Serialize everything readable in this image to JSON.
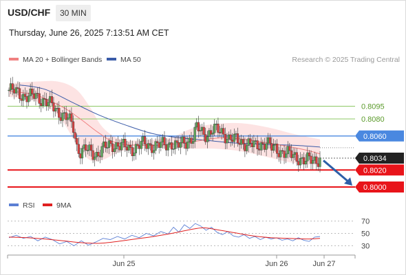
{
  "header": {
    "symbol": "USD/CHF",
    "timeframe": "30 MIN",
    "datetime": "Thursday, June 26, 2025 7:13:51 AM CET"
  },
  "colors": {
    "ma20": "#f08080",
    "ma50": "#3a5ba8",
    "bollinger_fill": "#fde0e0",
    "resistance": "#8cc863",
    "pivot": "#4a88e0",
    "support": "#e8141a",
    "candle_up": "#5aa55a",
    "candle_down": "#d94040",
    "price_label": "#222222",
    "arrow": "#2d5fa8",
    "rsi": "#5b7fd4",
    "rsi_ma": "#e02020"
  },
  "chart_data": [
    {
      "type": "candlestick",
      "title": "USD/CHF",
      "legend": [
        {
          "name": "MA 20 + Bollinger Bands",
          "color": "#f08080"
        },
        {
          "name": "MA 50",
          "color": "#3a5ba8"
        }
      ],
      "legend_position": "top-left",
      "credit": "Research © 2025 Trading Central",
      "x_ticks": [
        "Jun 25",
        "Jun 26",
        "Jun 27"
      ],
      "levels": [
        {
          "value": 0.8095,
          "label": "0.8095",
          "kind": "resistance"
        },
        {
          "value": 0.808,
          "label": "0.8080",
          "kind": "resistance"
        },
        {
          "value": 0.806,
          "label": "0.8060",
          "kind": "pivot"
        },
        {
          "value": 0.802,
          "label": "0.8020",
          "kind": "support"
        },
        {
          "value": 0.8,
          "label": "0.8000",
          "kind": "support"
        }
      ],
      "last_price": 0.8034,
      "last_price_label": "0.8034",
      "projection": {
        "from": 0.8032,
        "to": 0.8,
        "direction": "down"
      },
      "close_path": [
        [
          0,
          0.8114
        ],
        [
          6,
          0.8112
        ],
        [
          12,
          0.811
        ],
        [
          18,
          0.8107
        ],
        [
          24,
          0.8106
        ],
        [
          30,
          0.8107
        ],
        [
          36,
          0.8104
        ],
        [
          42,
          0.81
        ],
        [
          48,
          0.8095
        ],
        [
          54,
          0.809
        ],
        [
          60,
          0.8085
        ],
        [
          66,
          0.808
        ],
        [
          72,
          0.807
        ],
        [
          76,
          0.8048
        ],
        [
          80,
          0.8042
        ],
        [
          86,
          0.8044
        ],
        [
          92,
          0.804
        ],
        [
          98,
          0.8039
        ],
        [
          104,
          0.8044
        ],
        [
          110,
          0.8047
        ],
        [
          116,
          0.805
        ],
        [
          122,
          0.805
        ],
        [
          128,
          0.8047
        ],
        [
          134,
          0.8045
        ],
        [
          140,
          0.8046
        ],
        [
          146,
          0.8049
        ],
        [
          152,
          0.805
        ],
        [
          158,
          0.8049
        ],
        [
          164,
          0.8049
        ],
        [
          170,
          0.8049
        ],
        [
          176,
          0.805
        ],
        [
          182,
          0.8052
        ],
        [
          188,
          0.8047
        ],
        [
          194,
          0.8051
        ],
        [
          200,
          0.8055
        ],
        [
          206,
          0.8058
        ],
        [
          210,
          0.8069
        ],
        [
          216,
          0.8064
        ],
        [
          222,
          0.8062
        ],
        [
          228,
          0.8067
        ],
        [
          234,
          0.8066
        ],
        [
          240,
          0.8064
        ],
        [
          246,
          0.8057
        ],
        [
          252,
          0.8055
        ],
        [
          258,
          0.8054
        ],
        [
          264,
          0.8052
        ],
        [
          270,
          0.805
        ],
        [
          276,
          0.8047
        ],
        [
          282,
          0.8051
        ],
        [
          288,
          0.8053
        ],
        [
          294,
          0.8045
        ],
        [
          300,
          0.8044
        ],
        [
          306,
          0.8042
        ],
        [
          312,
          0.8039
        ],
        [
          318,
          0.8036
        ],
        [
          324,
          0.8035
        ],
        [
          330,
          0.8031
        ],
        [
          336,
          0.8031
        ],
        [
          342,
          0.8032
        ],
        [
          348,
          0.8034
        ]
      ],
      "ma20_path": [
        [
          0,
          0.8113
        ],
        [
          30,
          0.8108
        ],
        [
          60,
          0.8094
        ],
        [
          80,
          0.808
        ],
        [
          100,
          0.8064
        ],
        [
          120,
          0.8052
        ],
        [
          150,
          0.8049
        ],
        [
          180,
          0.805
        ],
        [
          210,
          0.8054
        ],
        [
          240,
          0.8058
        ],
        [
          270,
          0.8055
        ],
        [
          300,
          0.805
        ],
        [
          330,
          0.8044
        ],
        [
          348,
          0.8039
        ]
      ],
      "ma50_path": [
        [
          12,
          0.812
        ],
        [
          40,
          0.8115
        ],
        [
          70,
          0.81
        ],
        [
          100,
          0.8085
        ],
        [
          130,
          0.8073
        ],
        [
          160,
          0.8063
        ],
        [
          190,
          0.8058
        ],
        [
          220,
          0.8055
        ],
        [
          250,
          0.8052
        ],
        [
          290,
          0.805
        ],
        [
          320,
          0.8049
        ],
        [
          348,
          0.8047
        ]
      ],
      "bb_upper": [
        [
          0,
          0.8122
        ],
        [
          30,
          0.8124
        ],
        [
          55,
          0.8124
        ],
        [
          75,
          0.8115
        ],
        [
          90,
          0.8095
        ],
        [
          105,
          0.807
        ],
        [
          125,
          0.8056
        ],
        [
          150,
          0.8055
        ],
        [
          180,
          0.8058
        ],
        [
          205,
          0.8069
        ],
        [
          230,
          0.8074
        ],
        [
          260,
          0.8075
        ],
        [
          290,
          0.807
        ],
        [
          320,
          0.8062
        ],
        [
          348,
          0.8056
        ]
      ],
      "bb_lower": [
        [
          0,
          0.8106
        ],
        [
          30,
          0.8101
        ],
        [
          55,
          0.8084
        ],
        [
          75,
          0.8052
        ],
        [
          90,
          0.8032
        ],
        [
          105,
          0.8032
        ],
        [
          125,
          0.8042
        ],
        [
          150,
          0.8045
        ],
        [
          180,
          0.8046
        ],
        [
          205,
          0.8045
        ],
        [
          230,
          0.8045
        ],
        [
          260,
          0.8042
        ],
        [
          290,
          0.8035
        ],
        [
          320,
          0.8028
        ],
        [
          348,
          0.8026
        ]
      ]
    },
    {
      "type": "line",
      "legend": [
        {
          "name": "RSI",
          "color": "#5b7fd4"
        },
        {
          "name": "9MA",
          "color": "#e02020"
        }
      ],
      "y_ticks": [
        70,
        50,
        30
      ],
      "levels": [
        70,
        50,
        30
      ],
      "ylim": [
        20,
        80
      ],
      "series": [
        {
          "name": "RSI",
          "values": [
            [
              0,
              43
            ],
            [
              8,
              47
            ],
            [
              16,
              42
            ],
            [
              24,
              45
            ],
            [
              32,
              38
            ],
            [
              40,
              44
            ],
            [
              48,
              40
            ],
            [
              56,
              33
            ],
            [
              64,
              37
            ],
            [
              72,
              30
            ],
            [
              80,
              38
            ],
            [
              88,
              31
            ],
            [
              96,
              36
            ],
            [
              104,
              42
            ],
            [
              112,
              40
            ],
            [
              120,
              45
            ],
            [
              128,
              41
            ],
            [
              136,
              47
            ],
            [
              144,
              43
            ],
            [
              152,
              50
            ],
            [
              160,
              46
            ],
            [
              168,
              53
            ],
            [
              176,
              49
            ],
            [
              182,
              60
            ],
            [
              188,
              52
            ],
            [
              194,
              64
            ],
            [
              200,
              58
            ],
            [
              206,
              66
            ],
            [
              212,
              62
            ],
            [
              218,
              55
            ],
            [
              224,
              60
            ],
            [
              230,
              52
            ],
            [
              236,
              48
            ],
            [
              242,
              53
            ],
            [
              248,
              46
            ],
            [
              254,
              44
            ],
            [
              260,
              48
            ],
            [
              266,
              42
            ],
            [
              272,
              45
            ],
            [
              278,
              40
            ],
            [
              284,
              44
            ],
            [
              290,
              41
            ],
            [
              296,
              43
            ],
            [
              302,
              39
            ],
            [
              308,
              41
            ],
            [
              314,
              38
            ],
            [
              320,
              43
            ],
            [
              326,
              39
            ],
            [
              332,
              37
            ],
            [
              338,
              44
            ],
            [
              344,
              45
            ]
          ]
        },
        {
          "name": "9MA",
          "values": [
            [
              0,
              44
            ],
            [
              20,
              43
            ],
            [
              40,
              41
            ],
            [
              60,
              38
            ],
            [
              80,
              35
            ],
            [
              100,
              34
            ],
            [
              120,
              37
            ],
            [
              140,
              41
            ],
            [
              160,
              45
            ],
            [
              180,
              50
            ],
            [
              200,
              56
            ],
            [
              215,
              59
            ],
            [
              230,
              56
            ],
            [
              250,
              51
            ],
            [
              270,
              46
            ],
            [
              290,
              43
            ],
            [
              310,
              42
            ],
            [
              330,
              41
            ],
            [
              344,
              42
            ]
          ]
        }
      ]
    }
  ]
}
